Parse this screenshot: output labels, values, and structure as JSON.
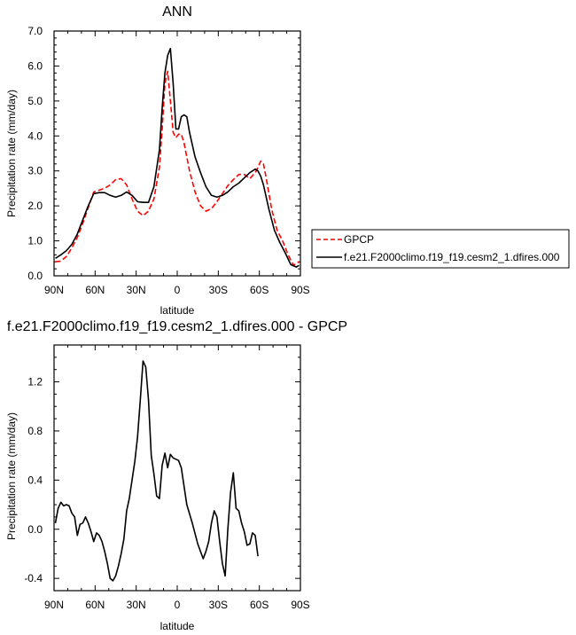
{
  "chart_data": [
    {
      "type": "line",
      "title": "ANN",
      "xlabel": "latitude",
      "ylabel": "Precipitation rate (mm/day)",
      "xlim": [
        90,
        -90
      ],
      "ylim": [
        0,
        7
      ],
      "x_ticks": [
        90,
        60,
        30,
        0,
        -30,
        -60,
        -90
      ],
      "x_tick_labels": [
        "90N",
        "60N",
        "30N",
        "0",
        "30S",
        "60S",
        "90S"
      ],
      "y_ticks": [
        0,
        1,
        2,
        3,
        4,
        5,
        6,
        7
      ],
      "y_tick_labels": [
        "0.0",
        "1.0",
        "2.0",
        "3.0",
        "4.0",
        "5.0",
        "6.0",
        "7.0"
      ],
      "grid": false,
      "legend_position": "right",
      "series": [
        {
          "name": "GPCP",
          "color": "#ff0000",
          "dash": "dashed",
          "points": [
            [
              89,
              0.4
            ],
            [
              85,
              0.42
            ],
            [
              81,
              0.55
            ],
            [
              77,
              0.8
            ],
            [
              73,
              1.1
            ],
            [
              69,
              1.5
            ],
            [
              65,
              1.95
            ],
            [
              61,
              2.4
            ],
            [
              57,
              2.45
            ],
            [
              53,
              2.5
            ],
            [
              49,
              2.6
            ],
            [
              45,
              2.75
            ],
            [
              41,
              2.78
            ],
            [
              37,
              2.6
            ],
            [
              33,
              2.2
            ],
            [
              29,
              1.85
            ],
            [
              25,
              1.72
            ],
            [
              21,
              1.85
            ],
            [
              17,
              2.2
            ],
            [
              13,
              3.1
            ],
            [
              11,
              4.2
            ],
            [
              9,
              5.5
            ],
            [
              7,
              5.85
            ],
            [
              5,
              5.0
            ],
            [
              3,
              4.1
            ],
            [
              1,
              3.95
            ],
            [
              -1,
              4.05
            ],
            [
              -3,
              4.05
            ],
            [
              -5,
              3.8
            ],
            [
              -9,
              3.0
            ],
            [
              -13,
              2.4
            ],
            [
              -17,
              2.0
            ],
            [
              -21,
              1.85
            ],
            [
              -25,
              1.92
            ],
            [
              -29,
              2.12
            ],
            [
              -33,
              2.35
            ],
            [
              -37,
              2.58
            ],
            [
              -41,
              2.75
            ],
            [
              -45,
              2.9
            ],
            [
              -49,
              2.9
            ],
            [
              -53,
              2.78
            ],
            [
              -57,
              2.95
            ],
            [
              -59,
              3.1
            ],
            [
              -61,
              3.28
            ],
            [
              -63,
              3.2
            ],
            [
              -65,
              2.8
            ],
            [
              -69,
              1.9
            ],
            [
              -73,
              1.3
            ],
            [
              -77,
              1.0
            ],
            [
              -81,
              0.6
            ],
            [
              -85,
              0.3
            ],
            [
              -89,
              0.4
            ]
          ]
        },
        {
          "name": "f.e21.F2000climo.f19_f19.cesm2_1.dfires.000",
          "color": "#000000",
          "dash": "solid",
          "points": [
            [
              89,
              0.5
            ],
            [
              85,
              0.6
            ],
            [
              81,
              0.72
            ],
            [
              77,
              0.9
            ],
            [
              73,
              1.2
            ],
            [
              69,
              1.6
            ],
            [
              65,
              2.0
            ],
            [
              61,
              2.35
            ],
            [
              57,
              2.38
            ],
            [
              53,
              2.38
            ],
            [
              49,
              2.3
            ],
            [
              45,
              2.25
            ],
            [
              41,
              2.3
            ],
            [
              37,
              2.4
            ],
            [
              33,
              2.3
            ],
            [
              29,
              2.12
            ],
            [
              25,
              2.1
            ],
            [
              21,
              2.1
            ],
            [
              17,
              2.55
            ],
            [
              13,
              3.6
            ],
            [
              11,
              4.8
            ],
            [
              9,
              5.8
            ],
            [
              7,
              6.3
            ],
            [
              5,
              6.5
            ],
            [
              3,
              5.5
            ],
            [
              1,
              4.2
            ],
            [
              -1,
              4.2
            ],
            [
              -3,
              4.55
            ],
            [
              -5,
              4.6
            ],
            [
              -7,
              4.55
            ],
            [
              -9,
              4.1
            ],
            [
              -13,
              3.4
            ],
            [
              -17,
              2.95
            ],
            [
              -21,
              2.55
            ],
            [
              -25,
              2.3
            ],
            [
              -29,
              2.25
            ],
            [
              -33,
              2.3
            ],
            [
              -37,
              2.4
            ],
            [
              -41,
              2.55
            ],
            [
              -45,
              2.65
            ],
            [
              -49,
              2.8
            ],
            [
              -53,
              2.95
            ],
            [
              -57,
              3.05
            ],
            [
              -59,
              3.0
            ],
            [
              -61,
              2.85
            ],
            [
              -63,
              2.6
            ],
            [
              -67,
              1.9
            ],
            [
              -71,
              1.3
            ],
            [
              -75,
              0.95
            ],
            [
              -79,
              0.65
            ],
            [
              -83,
              0.32
            ],
            [
              -87,
              0.25
            ],
            [
              -89,
              0.3
            ]
          ]
        }
      ]
    },
    {
      "type": "line",
      "title": "f.e21.F2000climo.f19_f19.cesm2_1.dfires.000 - GPCP",
      "xlabel": "latitude",
      "ylabel": "Precipitation rate (mm/day)",
      "xlim": [
        90,
        -90
      ],
      "ylim": [
        -0.5,
        1.5
      ],
      "x_ticks": [
        90,
        60,
        30,
        0,
        -30,
        -60,
        -90
      ],
      "x_tick_labels": [
        "90N",
        "60N",
        "30N",
        "0",
        "30S",
        "60S",
        "90S"
      ],
      "y_ticks": [
        -0.4,
        0,
        0.4,
        0.8,
        1.2
      ],
      "y_tick_labels": [
        "-0.4",
        "0.0",
        "0.4",
        "0.8",
        "1.2"
      ],
      "grid": false,
      "series": [
        {
          "color": "#000000",
          "dash": "solid",
          "points": [
            [
              89,
              0.05
            ],
            [
              87,
              0.17
            ],
            [
              85,
              0.22
            ],
            [
              83,
              0.19
            ],
            [
              81,
              0.2
            ],
            [
              79,
              0.19
            ],
            [
              77,
              0.13
            ],
            [
              75,
              0.1
            ],
            [
              73,
              -0.05
            ],
            [
              71,
              0.04
            ],
            [
              69,
              0.05
            ],
            [
              67,
              0.1
            ],
            [
              65,
              0.05
            ],
            [
              63,
              -0.02
            ],
            [
              61,
              -0.1
            ],
            [
              59,
              -0.03
            ],
            [
              57,
              -0.05
            ],
            [
              55,
              -0.1
            ],
            [
              53,
              -0.18
            ],
            [
              51,
              -0.28
            ],
            [
              49,
              -0.4
            ],
            [
              47,
              -0.42
            ],
            [
              45,
              -0.38
            ],
            [
              43,
              -0.3
            ],
            [
              41,
              -0.2
            ],
            [
              39,
              -0.08
            ],
            [
              37,
              0.15
            ],
            [
              35,
              0.25
            ],
            [
              33,
              0.4
            ],
            [
              31,
              0.55
            ],
            [
              29,
              0.75
            ],
            [
              27,
              1.05
            ],
            [
              25,
              1.37
            ],
            [
              23,
              1.32
            ],
            [
              21,
              1.05
            ],
            [
              19,
              0.6
            ],
            [
              17,
              0.45
            ],
            [
              15,
              0.27
            ],
            [
              13,
              0.25
            ],
            [
              11,
              0.52
            ],
            [
              9,
              0.62
            ],
            [
              7,
              0.5
            ],
            [
              5,
              0.61
            ],
            [
              3,
              0.58
            ],
            [
              1,
              0.57
            ],
            [
              -1,
              0.56
            ],
            [
              -3,
              0.5
            ],
            [
              -5,
              0.35
            ],
            [
              -7,
              0.2
            ],
            [
              -11,
              0.05
            ],
            [
              -15,
              -0.12
            ],
            [
              -19,
              -0.24
            ],
            [
              -21,
              -0.18
            ],
            [
              -23,
              -0.1
            ],
            [
              -25,
              0.05
            ],
            [
              -27,
              0.15
            ],
            [
              -29,
              0.1
            ],
            [
              -31,
              -0.1
            ],
            [
              -33,
              -0.28
            ],
            [
              -35,
              -0.38
            ],
            [
              -37,
              0.0
            ],
            [
              -39,
              0.3
            ],
            [
              -41,
              0.46
            ],
            [
              -43,
              0.17
            ],
            [
              -45,
              0.15
            ],
            [
              -47,
              0.05
            ],
            [
              -49,
              -0.02
            ],
            [
              -51,
              -0.13
            ],
            [
              -53,
              -0.12
            ],
            [
              -55,
              -0.03
            ],
            [
              -57,
              -0.05
            ],
            [
              -59,
              -0.22
            ]
          ]
        }
      ]
    }
  ]
}
